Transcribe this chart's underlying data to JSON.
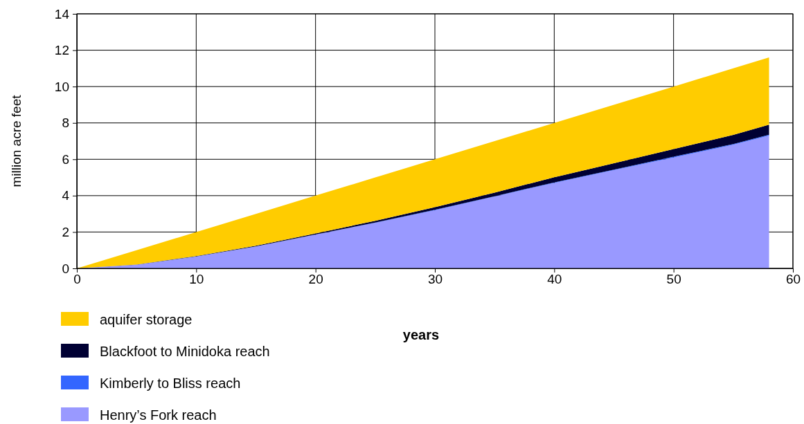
{
  "chart_data": {
    "type": "area",
    "stacked": true,
    "xlabel": "years",
    "ylabel": "million acre feet",
    "x": [
      0,
      5,
      10,
      15,
      20,
      25,
      30,
      35,
      40,
      45,
      50,
      55,
      58
    ],
    "xlim": [
      0,
      60
    ],
    "xticks": [
      0,
      10,
      20,
      30,
      40,
      50,
      60
    ],
    "ylim": [
      0,
      14
    ],
    "yticks": [
      0,
      2,
      4,
      6,
      8,
      10,
      12,
      14
    ],
    "grid": true,
    "legend": "bottom left",
    "series": [
      {
        "name": "Henry’s Fork reach",
        "color": "#9999ff",
        "values": [
          0,
          0.2,
          0.65,
          1.2,
          1.85,
          2.5,
          3.2,
          3.95,
          4.7,
          5.4,
          6.1,
          6.8,
          7.3
        ]
      },
      {
        "name": "Kimberly to Bliss reach",
        "color": "#3366ff",
        "values": [
          0,
          0,
          0.01,
          0.01,
          0.01,
          0.02,
          0.02,
          0.02,
          0.03,
          0.03,
          0.04,
          0.04,
          0.05
        ]
      },
      {
        "name": "Blackfoot to Minidoka reach",
        "color": "#000033",
        "values": [
          0,
          0.01,
          0.02,
          0.04,
          0.06,
          0.1,
          0.15,
          0.2,
          0.28,
          0.35,
          0.42,
          0.5,
          0.55
        ]
      },
      {
        "name": "aquifer storage",
        "color": "#ffcc00",
        "values": [
          0,
          0.79,
          1.32,
          1.75,
          2.08,
          2.38,
          2.63,
          2.83,
          2.99,
          3.22,
          3.44,
          3.66,
          3.7
        ]
      }
    ]
  }
}
